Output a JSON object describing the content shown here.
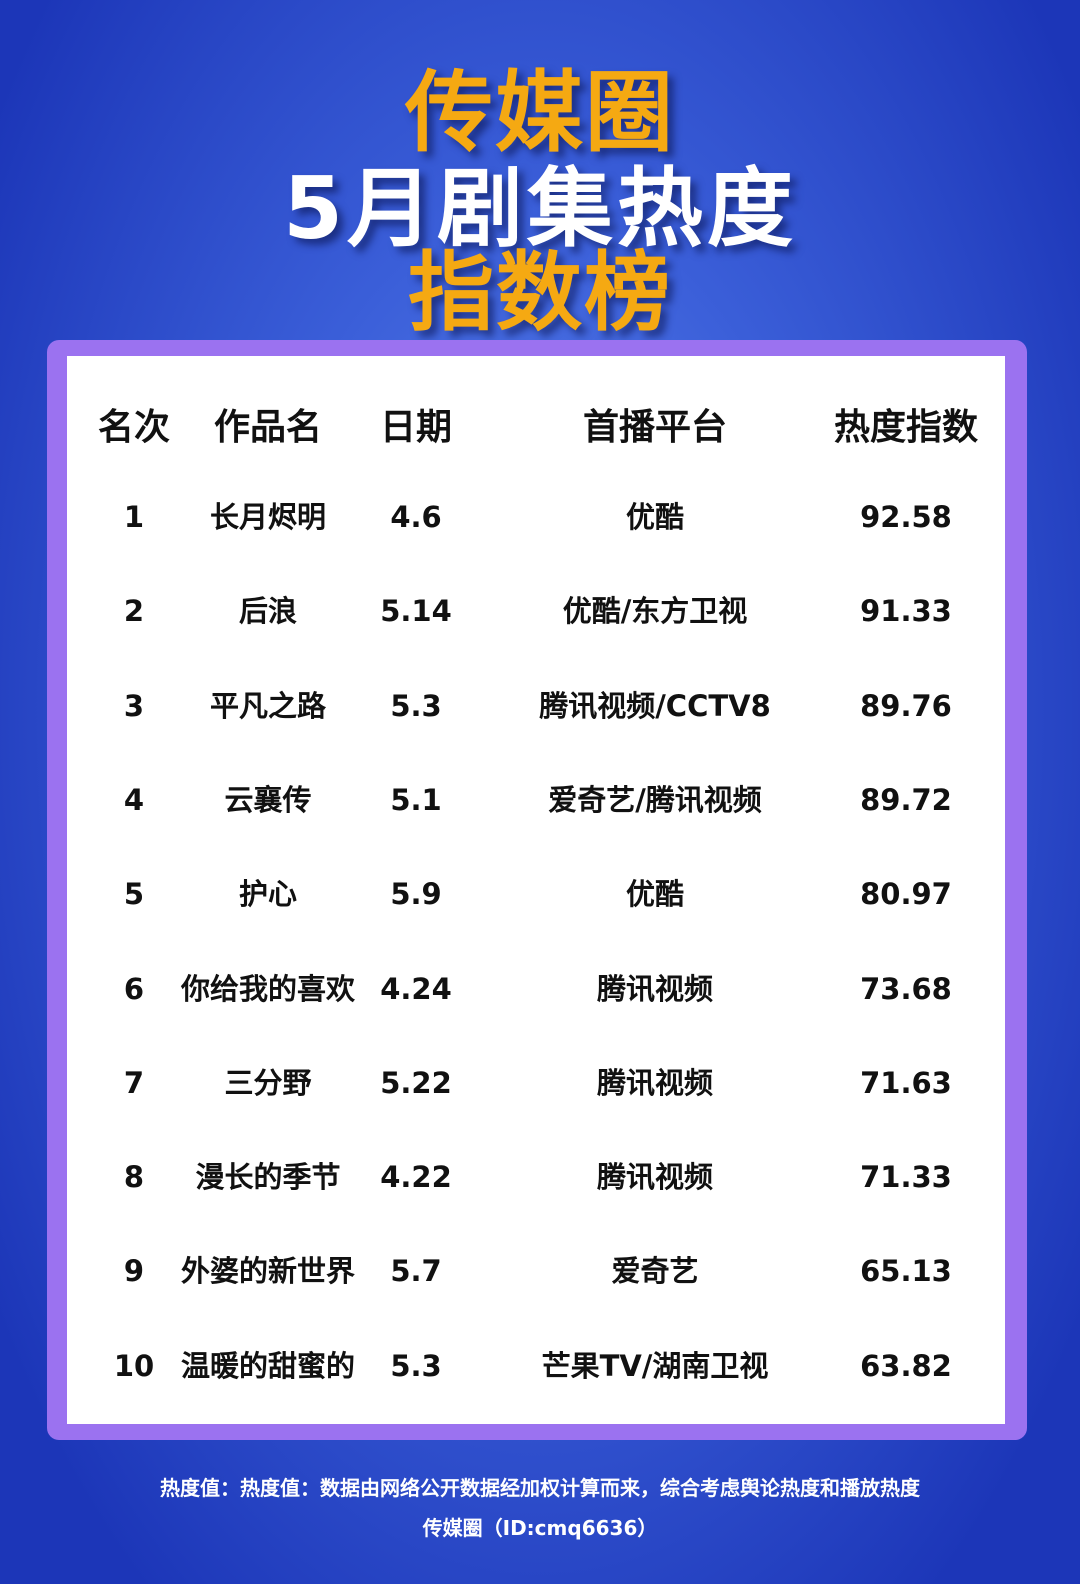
{
  "title": {
    "brand": "传媒圈",
    "line2": "5月剧集热度",
    "line3": "指数榜"
  },
  "colors": {
    "accent": "#f5a912",
    "card_border": "#9b72f0",
    "background": "#3b5fd9"
  },
  "table": {
    "headers": [
      "名次",
      "作品名",
      "日期",
      "首播平台",
      "热度指数"
    ],
    "rows": [
      [
        "1",
        "长月烬明",
        "4.6",
        "优酷",
        "92.58"
      ],
      [
        "2",
        "后浪",
        "5.14",
        "优酷/东方卫视",
        "91.33"
      ],
      [
        "3",
        "平凡之路",
        "5.3",
        "腾讯视频/CCTV8",
        "89.76"
      ],
      [
        "4",
        "云襄传",
        "5.1",
        "爱奇艺/腾讯视频",
        "89.72"
      ],
      [
        "5",
        "护心",
        "5.9",
        "优酷",
        "80.97"
      ],
      [
        "6",
        "你给我的喜欢",
        "4.24",
        "腾讯视频",
        "73.68"
      ],
      [
        "7",
        "三分野",
        "5.22",
        "腾讯视频",
        "71.63"
      ],
      [
        "8",
        "漫长的季节",
        "4.22",
        "腾讯视频",
        "71.33"
      ],
      [
        "9",
        "外婆的新世界",
        "5.7",
        "爱奇艺",
        "65.13"
      ],
      [
        "10",
        "温暖的甜蜜的",
        "5.3",
        "芒果TV/湖南卫视",
        "63.82"
      ]
    ]
  },
  "footer": {
    "note": "热度值：热度值：数据由网络公开数据经加权计算而来，综合考虑舆论热度和播放热度",
    "credit": "传媒圈（ID:cmq6636）"
  }
}
